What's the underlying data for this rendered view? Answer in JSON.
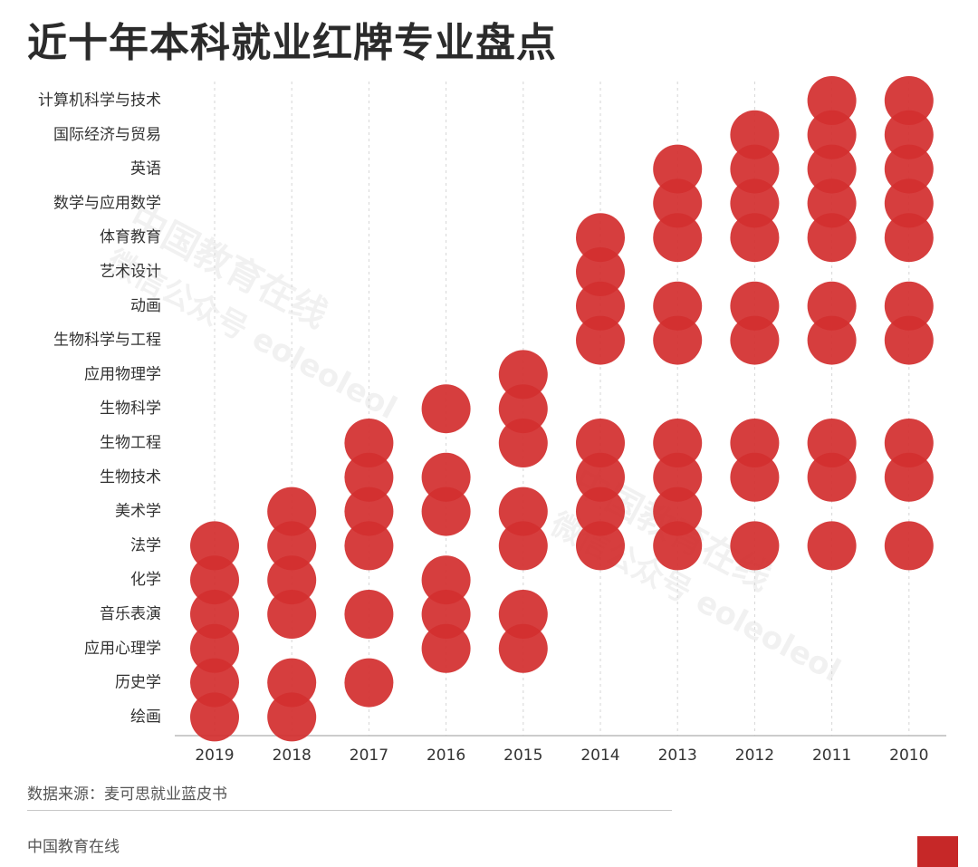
{
  "title": "近十年本科就业红牌专业盘点",
  "source": "数据来源：麦可思就业蓝皮书",
  "footer": "中国教育在线",
  "watermark": {
    "line1": "中国教育在线",
    "line2": "微信公众号 eoleoleol"
  },
  "colors": {
    "dot": "#d32f2f",
    "axis": "#bbbbbb",
    "grid": "#d6d6d6",
    "accent": "#c62828"
  },
  "chart_data": {
    "type": "scatter",
    "title": "近十年本科就业红牌专业盘点",
    "years": [
      "2019",
      "2018",
      "2017",
      "2016",
      "2015",
      "2014",
      "2013",
      "2012",
      "2011",
      "2010"
    ],
    "majors": [
      "计算机科学与技术",
      "国际经济与贸易",
      "英语",
      "数学与应用数学",
      "体育教育",
      "艺术设计",
      "动画",
      "生物科学与工程",
      "应用物理学",
      "生物科学",
      "生物工程",
      "生物技术",
      "美术学",
      "法学",
      "化学",
      "音乐表演",
      "应用心理学",
      "历史学",
      "绘画"
    ],
    "grid": true,
    "by_year": {
      "2019": [
        "法学",
        "化学",
        "音乐表演",
        "应用心理学",
        "历史学",
        "绘画"
      ],
      "2018": [
        "美术学",
        "法学",
        "化学",
        "音乐表演",
        "历史学",
        "绘画"
      ],
      "2017": [
        "生物工程",
        "生物技术",
        "美术学",
        "法学",
        "音乐表演",
        "历史学"
      ],
      "2016": [
        "生物科学",
        "生物技术",
        "美术学",
        "化学",
        "音乐表演",
        "应用心理学"
      ],
      "2015": [
        "应用物理学",
        "生物科学",
        "生物工程",
        "美术学",
        "法学",
        "音乐表演",
        "应用心理学"
      ],
      "2014": [
        "体育教育",
        "艺术设计",
        "动画",
        "生物科学与工程",
        "生物工程",
        "生物技术",
        "美术学",
        "法学"
      ],
      "2013": [
        "英语",
        "数学与应用数学",
        "体育教育",
        "动画",
        "生物科学与工程",
        "生物工程",
        "生物技术",
        "美术学",
        "法学"
      ],
      "2012": [
        "国际经济与贸易",
        "英语",
        "数学与应用数学",
        "体育教育",
        "动画",
        "生物科学与工程",
        "生物工程",
        "生物技术",
        "法学"
      ],
      "2011": [
        "计算机科学与技术",
        "国际经济与贸易",
        "英语",
        "数学与应用数学",
        "体育教育",
        "动画",
        "生物科学与工程",
        "生物工程",
        "生物技术",
        "法学"
      ],
      "2010": [
        "计算机科学与技术",
        "国际经济与贸易",
        "英语",
        "数学与应用数学",
        "体育教育",
        "动画",
        "生物科学与工程",
        "生物工程",
        "生物技术",
        "法学"
      ]
    }
  }
}
